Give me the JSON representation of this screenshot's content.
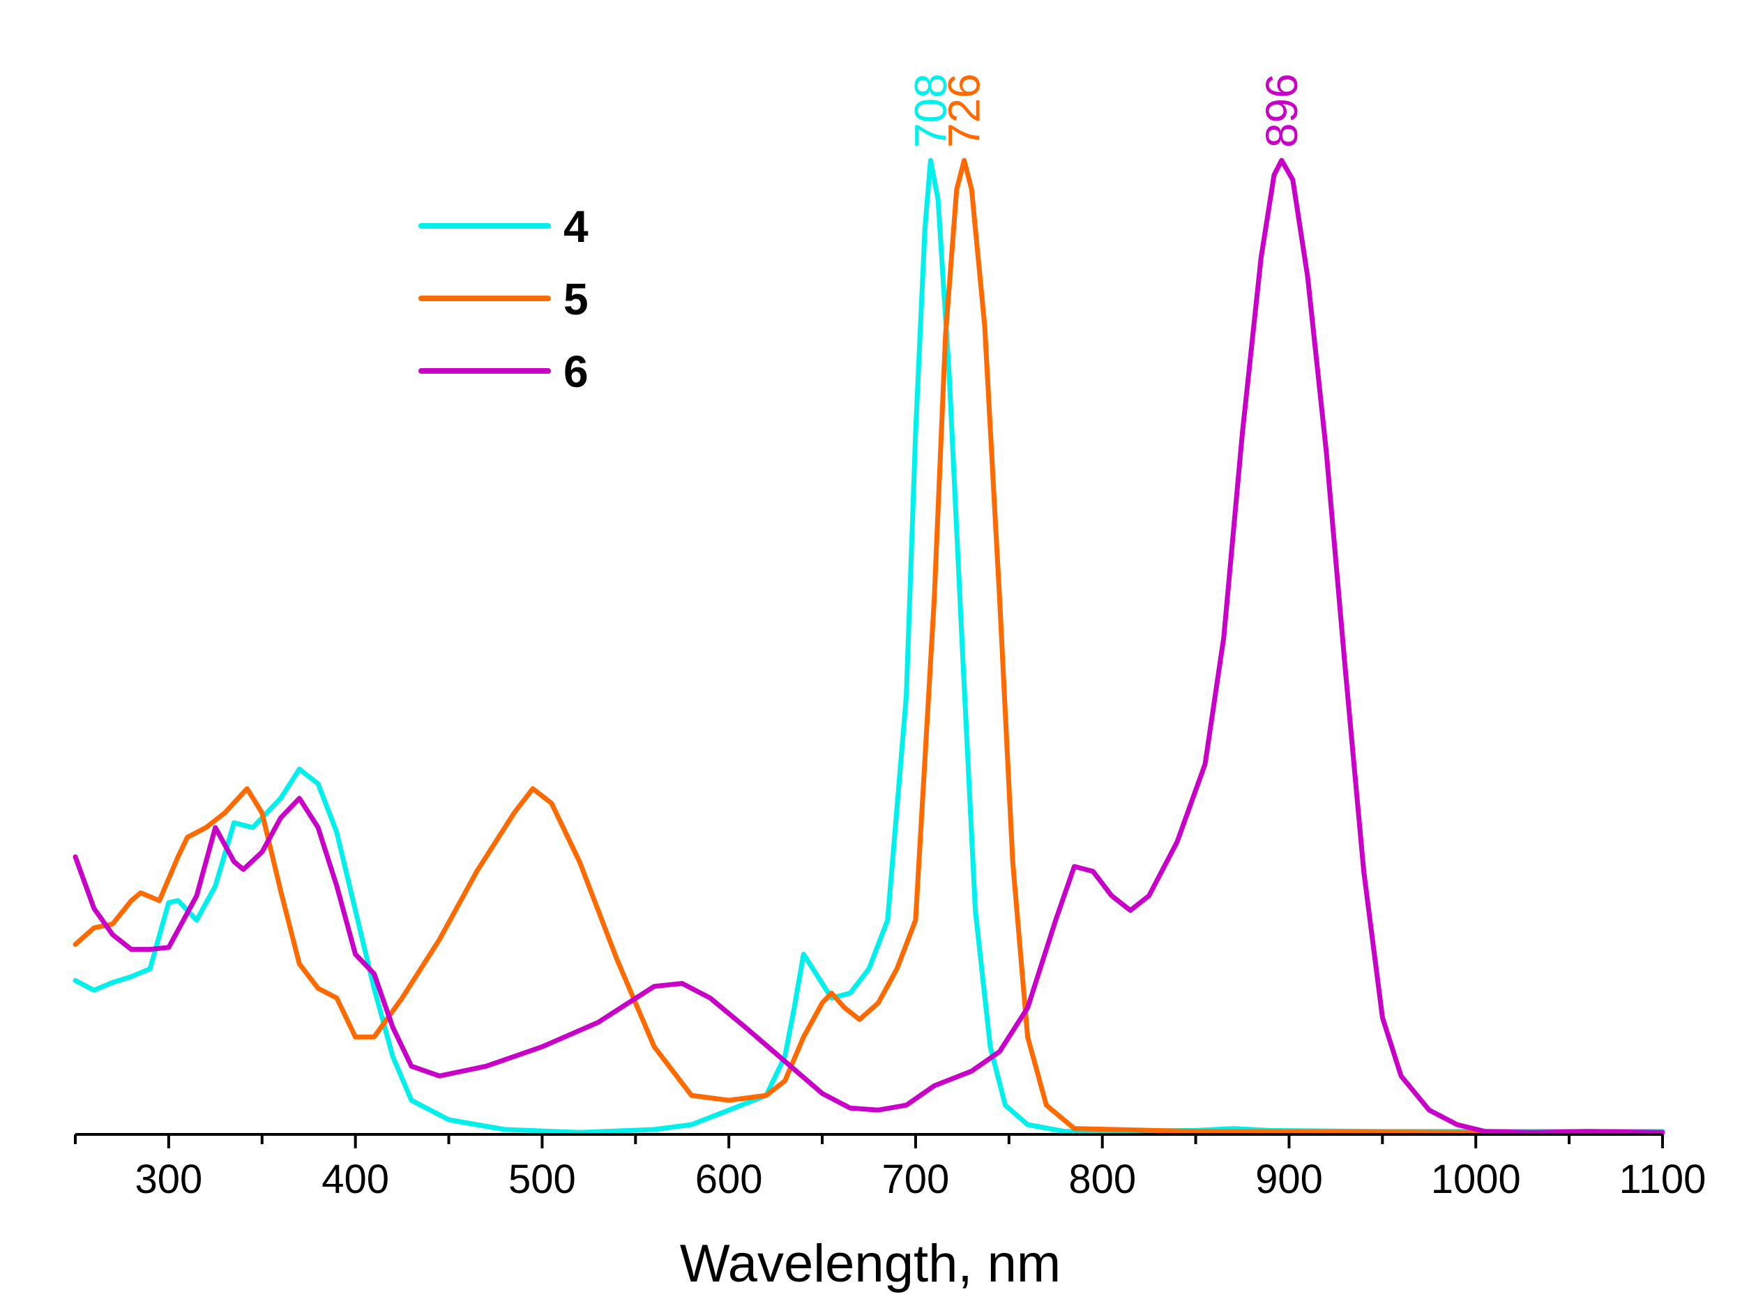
{
  "chart_data": {
    "type": "line",
    "title": "",
    "xlabel": "Wavelength, nm",
    "ylabel": "",
    "xlim": [
      250,
      1100
    ],
    "ylim": [
      0,
      1.0
    ],
    "xticks": [
      300,
      400,
      500,
      600,
      700,
      800,
      900,
      1000,
      1100
    ],
    "x_tick_labels": [
      "300",
      "400",
      "500",
      "600",
      "700",
      "800",
      "900",
      "1000",
      "1100"
    ],
    "grid": false,
    "y_axis_visible": false,
    "legend_position": "top-left",
    "series": [
      {
        "name": "4",
        "color": "#00f0ec",
        "peak_label": "708",
        "peak_x": 708,
        "points": [
          [
            250,
            0.158
          ],
          [
            260,
            0.148
          ],
          [
            270,
            0.156
          ],
          [
            280,
            0.162
          ],
          [
            290,
            0.17
          ],
          [
            300,
            0.238
          ],
          [
            305,
            0.24
          ],
          [
            315,
            0.22
          ],
          [
            325,
            0.255
          ],
          [
            335,
            0.32
          ],
          [
            345,
            0.315
          ],
          [
            360,
            0.345
          ],
          [
            370,
            0.375
          ],
          [
            380,
            0.36
          ],
          [
            390,
            0.31
          ],
          [
            400,
            0.23
          ],
          [
            410,
            0.15
          ],
          [
            420,
            0.08
          ],
          [
            430,
            0.035
          ],
          [
            450,
            0.015
          ],
          [
            480,
            0.005
          ],
          [
            520,
            0.002
          ],
          [
            560,
            0.005
          ],
          [
            580,
            0.01
          ],
          [
            600,
            0.025
          ],
          [
            620,
            0.04
          ],
          [
            630,
            0.08
          ],
          [
            635,
            0.13
          ],
          [
            640,
            0.185
          ],
          [
            645,
            0.17
          ],
          [
            655,
            0.14
          ],
          [
            665,
            0.145
          ],
          [
            675,
            0.17
          ],
          [
            685,
            0.22
          ],
          [
            695,
            0.45
          ],
          [
            700,
            0.72
          ],
          [
            705,
            0.93
          ],
          [
            708,
            1.0
          ],
          [
            712,
            0.96
          ],
          [
            718,
            0.78
          ],
          [
            725,
            0.5
          ],
          [
            732,
            0.23
          ],
          [
            740,
            0.09
          ],
          [
            748,
            0.03
          ],
          [
            760,
            0.01
          ],
          [
            780,
            0.003
          ],
          [
            850,
            0.004
          ],
          [
            870,
            0.006
          ],
          [
            890,
            0.004
          ],
          [
            950,
            0.003
          ],
          [
            1050,
            0.003
          ],
          [
            1100,
            0.003
          ]
        ]
      },
      {
        "name": "5",
        "color": "#ff6a00",
        "peak_label": "726",
        "peak_x": 726,
        "points": [
          [
            250,
            0.195
          ],
          [
            260,
            0.212
          ],
          [
            270,
            0.216
          ],
          [
            280,
            0.24
          ],
          [
            285,
            0.248
          ],
          [
            295,
            0.24
          ],
          [
            305,
            0.285
          ],
          [
            310,
            0.305
          ],
          [
            320,
            0.315
          ],
          [
            330,
            0.33
          ],
          [
            342,
            0.355
          ],
          [
            350,
            0.33
          ],
          [
            360,
            0.25
          ],
          [
            370,
            0.175
          ],
          [
            380,
            0.15
          ],
          [
            390,
            0.14
          ],
          [
            400,
            0.1
          ],
          [
            410,
            0.1
          ],
          [
            425,
            0.14
          ],
          [
            445,
            0.2
          ],
          [
            465,
            0.27
          ],
          [
            485,
            0.33
          ],
          [
            495,
            0.355
          ],
          [
            505,
            0.34
          ],
          [
            520,
            0.28
          ],
          [
            540,
            0.18
          ],
          [
            560,
            0.09
          ],
          [
            580,
            0.04
          ],
          [
            600,
            0.035
          ],
          [
            620,
            0.04
          ],
          [
            630,
            0.055
          ],
          [
            640,
            0.1
          ],
          [
            650,
            0.135
          ],
          [
            655,
            0.145
          ],
          [
            662,
            0.13
          ],
          [
            670,
            0.118
          ],
          [
            680,
            0.135
          ],
          [
            690,
            0.17
          ],
          [
            700,
            0.22
          ],
          [
            710,
            0.55
          ],
          [
            716,
            0.82
          ],
          [
            722,
            0.97
          ],
          [
            726,
            1.0
          ],
          [
            730,
            0.97
          ],
          [
            737,
            0.83
          ],
          [
            745,
            0.55
          ],
          [
            752,
            0.28
          ],
          [
            760,
            0.1
          ],
          [
            770,
            0.03
          ],
          [
            785,
            0.006
          ],
          [
            850,
            0.003
          ],
          [
            1000,
            0.002
          ],
          [
            1100,
            0.002
          ]
        ]
      },
      {
        "name": "6",
        "color": "#c800c8",
        "peak_label": "896",
        "peak_x": 896,
        "points": [
          [
            250,
            0.285
          ],
          [
            260,
            0.232
          ],
          [
            270,
            0.205
          ],
          [
            280,
            0.19
          ],
          [
            290,
            0.19
          ],
          [
            300,
            0.192
          ],
          [
            315,
            0.245
          ],
          [
            325,
            0.315
          ],
          [
            335,
            0.28
          ],
          [
            340,
            0.272
          ],
          [
            350,
            0.29
          ],
          [
            360,
            0.325
          ],
          [
            370,
            0.345
          ],
          [
            380,
            0.315
          ],
          [
            390,
            0.255
          ],
          [
            400,
            0.185
          ],
          [
            410,
            0.165
          ],
          [
            420,
            0.11
          ],
          [
            430,
            0.07
          ],
          [
            445,
            0.06
          ],
          [
            470,
            0.07
          ],
          [
            500,
            0.09
          ],
          [
            530,
            0.115
          ],
          [
            560,
            0.152
          ],
          [
            575,
            0.155
          ],
          [
            590,
            0.14
          ],
          [
            610,
            0.108
          ],
          [
            630,
            0.075
          ],
          [
            650,
            0.042
          ],
          [
            665,
            0.027
          ],
          [
            680,
            0.025
          ],
          [
            695,
            0.03
          ],
          [
            710,
            0.05
          ],
          [
            730,
            0.065
          ],
          [
            745,
            0.085
          ],
          [
            760,
            0.13
          ],
          [
            775,
            0.22
          ],
          [
            785,
            0.275
          ],
          [
            795,
            0.27
          ],
          [
            805,
            0.245
          ],
          [
            815,
            0.23
          ],
          [
            825,
            0.245
          ],
          [
            840,
            0.3
          ],
          [
            855,
            0.38
          ],
          [
            865,
            0.51
          ],
          [
            875,
            0.72
          ],
          [
            885,
            0.9
          ],
          [
            892,
            0.985
          ],
          [
            896,
            1.0
          ],
          [
            902,
            0.98
          ],
          [
            910,
            0.88
          ],
          [
            920,
            0.7
          ],
          [
            930,
            0.48
          ],
          [
            940,
            0.27
          ],
          [
            950,
            0.12
          ],
          [
            960,
            0.06
          ],
          [
            975,
            0.025
          ],
          [
            990,
            0.01
          ],
          [
            1005,
            0.003
          ],
          [
            1030,
            0.002
          ],
          [
            1060,
            0.003
          ],
          [
            1100,
            0.002
          ]
        ]
      }
    ]
  }
}
